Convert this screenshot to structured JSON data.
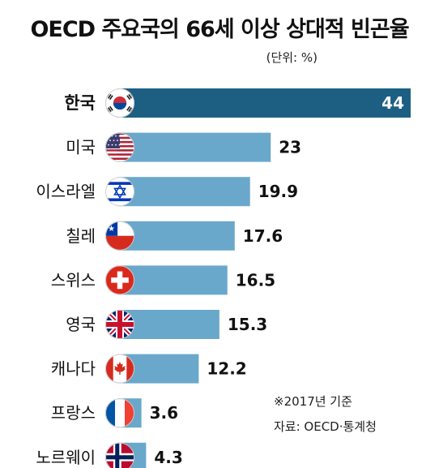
{
  "title": "OECD 주요국의 66세 이상 상대적 빈곤율",
  "unit": "(단위: %)",
  "note_year": "※2017년 기준",
  "note_source": "자료: OECD·통계청",
  "colors": {
    "highlight_bar": "#1d5f82",
    "bar": "#6aa8cb"
  },
  "chart_data": {
    "type": "bar",
    "orientation": "horizontal",
    "categories": [
      "한국",
      "미국",
      "이스라엘",
      "칠레",
      "스위스",
      "영국",
      "캐나다",
      "프랑스",
      "노르웨이"
    ],
    "flags": [
      "south-korea-flag-icon",
      "usa-flag-icon",
      "israel-flag-icon",
      "chile-flag-icon",
      "switzerland-flag-icon",
      "uk-flag-icon",
      "canada-flag-icon",
      "france-flag-icon",
      "norway-flag-icon"
    ],
    "values": [
      44,
      23,
      19.9,
      17.6,
      16.5,
      15.3,
      12.2,
      3.6,
      4.3
    ],
    "value_labels": [
      "44",
      "23",
      "19.9",
      "17.6",
      "16.5",
      "15.3",
      "12.2",
      "3.6",
      "4.3"
    ],
    "highlight": "한국",
    "xlim": [
      0,
      44
    ]
  }
}
